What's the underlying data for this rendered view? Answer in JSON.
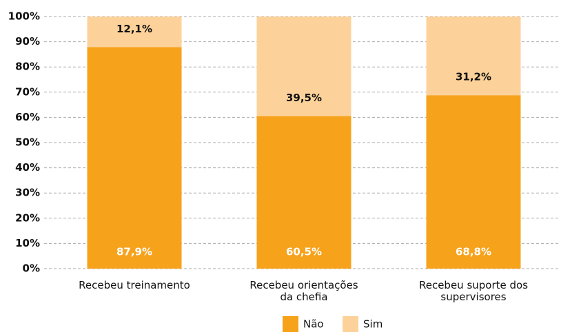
{
  "chart_data": {
    "type": "stacked_bar",
    "categories": [
      "Recebeu treinamento",
      "Recebeu orientações\nda chefia",
      "Recebeu suporte dos\nsupervisores"
    ],
    "series": [
      {
        "name": "Não",
        "color": "#f7a21b",
        "values": [
          87.9,
          60.5,
          68.8
        ],
        "value_labels": [
          "87,9%",
          "60,5%",
          "68,8%"
        ]
      },
      {
        "name": "Sim",
        "color": "#fdd29a",
        "values": [
          12.1,
          39.5,
          31.2
        ],
        "value_labels": [
          "12,1%",
          "39,5%",
          "31,2%"
        ]
      }
    ],
    "ylim": [
      0,
      100
    ],
    "yticks": [
      {
        "value": 0,
        "label": "0%"
      },
      {
        "value": 10,
        "label": "10%"
      },
      {
        "value": 20,
        "label": "20%"
      },
      {
        "value": 30,
        "label": "30%"
      },
      {
        "value": 40,
        "label": "40%"
      },
      {
        "value": 50,
        "label": "50%"
      },
      {
        "value": 60,
        "label": "60%"
      },
      {
        "value": 70,
        "label": "70%"
      },
      {
        "value": 80,
        "label": "80%"
      },
      {
        "value": 90,
        "label": "90%"
      },
      {
        "value": 100,
        "label": "100%"
      }
    ],
    "grid": true,
    "legend": "bottom"
  }
}
